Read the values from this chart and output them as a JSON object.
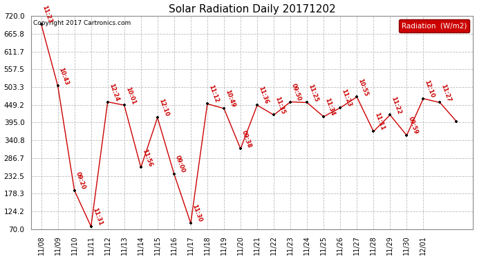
{
  "title": "Solar Radiation Daily 20171202",
  "copyright": "Copyright 2017 Cartronics.com",
  "legend_label": "Radiation  (W/m2)",
  "y_ticks": [
    70.0,
    124.2,
    178.3,
    232.5,
    286.7,
    340.8,
    395.0,
    449.2,
    503.3,
    557.5,
    611.7,
    665.8,
    720.0
  ],
  "x_labels": [
    "11/08",
    "11/09",
    "11/10",
    "11/11",
    "11/12",
    "11/13",
    "11/14",
    "11/15",
    "11/16",
    "11/17",
    "11/18",
    "11/19",
    "11/20",
    "11/21",
    "11/22",
    "11/23",
    "11/24",
    "11/25",
    "11/26",
    "11/27",
    "11/28",
    "11/29",
    "11/30",
    "12/01"
  ],
  "points": [
    [
      0.0,
      695,
      "11:23"
    ],
    [
      0.5,
      507,
      "10:43"
    ],
    [
      1.0,
      188,
      "09:20"
    ],
    [
      1.5,
      78,
      "11:31"
    ],
    [
      2.0,
      458,
      "12:24"
    ],
    [
      2.5,
      448,
      "10:01"
    ],
    [
      3.0,
      258,
      "11:56"
    ],
    [
      3.5,
      410,
      "12:10"
    ],
    [
      4.0,
      238,
      "09:00"
    ],
    [
      4.5,
      88,
      "11:30"
    ],
    [
      5.0,
      452,
      "11:12"
    ],
    [
      5.5,
      438,
      "10:49"
    ],
    [
      6.0,
      315,
      "09:38"
    ],
    [
      6.5,
      448,
      "11:36"
    ],
    [
      7.0,
      418,
      "11:35"
    ],
    [
      7.5,
      458,
      "09:50"
    ],
    [
      8.0,
      456,
      "11:25"
    ],
    [
      8.5,
      413,
      "11:34"
    ],
    [
      9.0,
      440,
      "11:23"
    ],
    [
      9.5,
      473,
      "10:55"
    ],
    [
      10.0,
      368,
      "11:11"
    ],
    [
      10.5,
      418,
      "11:22"
    ],
    [
      11.0,
      356,
      "09:59"
    ],
    [
      11.5,
      468,
      "12:10"
    ],
    [
      12.0,
      456,
      "11:27"
    ],
    [
      12.5,
      398,
      ""
    ]
  ],
  "line_color": "#cc0000",
  "marker_color": "#000000",
  "label_color": "#cc0000",
  "grid_color": "#bbbbbb",
  "bg_color": "#ffffff",
  "title_fontsize": 11,
  "legend_bg": "#cc0000",
  "legend_text_color": "#ffffff",
  "figwidth": 6.9,
  "figheight": 3.75,
  "dpi": 100
}
